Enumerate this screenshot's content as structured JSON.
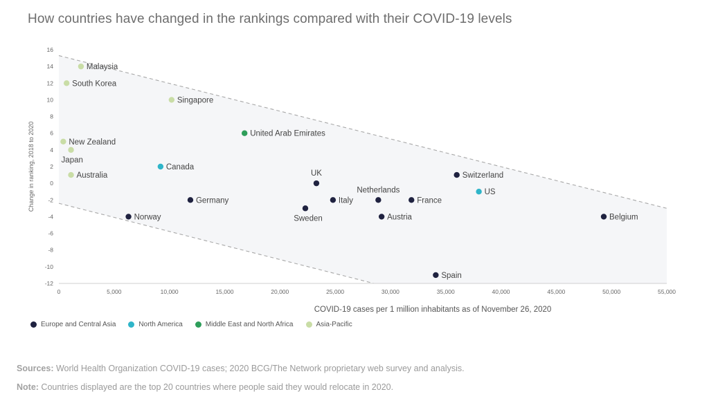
{
  "chart_data": {
    "type": "scatter",
    "title": "How countries have changed in the rankings compared with their COVID-19 levels",
    "xlabel": "COVID-19 cases per 1 million inhabitants as of November 26, 2020",
    "ylabel": "Change in ranking, 2018 to 2020",
    "xlim": [
      0,
      55000
    ],
    "ylim": [
      -12,
      16
    ],
    "x_ticks": [
      0,
      5000,
      10000,
      15000,
      20000,
      25000,
      30000,
      35000,
      40000,
      45000,
      50000,
      55000
    ],
    "x_tick_labels": [
      "0",
      "5,000",
      "10,000",
      "15,000",
      "20,000",
      "25,000",
      "30,000",
      "35,000",
      "40,000",
      "45,000",
      "50,000",
      "55,000"
    ],
    "y_ticks": [
      -12,
      -10,
      -8,
      -6,
      -4,
      -2,
      0,
      2,
      4,
      6,
      8,
      10,
      12,
      14,
      16
    ],
    "legend_position": "bottom-left",
    "grid": false,
    "band": {
      "upper": {
        "x0": 0,
        "y0": 15.3,
        "x1": 55000,
        "y1": -3
      },
      "lower": {
        "x0": 0,
        "y0": -2.4,
        "x1": 28500,
        "y1": -12
      }
    },
    "series": [
      {
        "name": "Europe and Central Asia",
        "color": "#1f2240"
      },
      {
        "name": "North America",
        "color": "#2fb5c9"
      },
      {
        "name": "Middle East and North Africa",
        "color": "#2e9e5a"
      },
      {
        "name": "Asia-Pacific",
        "color": "#c9dda6"
      }
    ],
    "points": [
      {
        "label": "Malaysia",
        "x": 2000,
        "y": 14,
        "series": 3,
        "pos": "right"
      },
      {
        "label": "South Korea",
        "x": 700,
        "y": 12,
        "series": 3,
        "pos": "right"
      },
      {
        "label": "Singapore",
        "x": 10200,
        "y": 10,
        "series": 3,
        "pos": "right"
      },
      {
        "label": "New Zealand",
        "x": 400,
        "y": 5,
        "series": 3,
        "pos": "right"
      },
      {
        "label": "Japan",
        "x": 1100,
        "y": 4,
        "series": 3,
        "pos": "below-left"
      },
      {
        "label": "Australia",
        "x": 1100,
        "y": 1,
        "series": 3,
        "pos": "right"
      },
      {
        "label": "United Arab Emirates",
        "x": 16800,
        "y": 6,
        "series": 2,
        "pos": "right"
      },
      {
        "label": "Canada",
        "x": 9200,
        "y": 2,
        "series": 1,
        "pos": "right"
      },
      {
        "label": "US",
        "x": 38000,
        "y": -1,
        "series": 1,
        "pos": "right"
      },
      {
        "label": "Germany",
        "x": 11900,
        "y": -2,
        "series": 0,
        "pos": "right"
      },
      {
        "label": "Norway",
        "x": 6300,
        "y": -4,
        "series": 0,
        "pos": "right"
      },
      {
        "label": "UK",
        "x": 23300,
        "y": 0,
        "series": 0,
        "pos": "above"
      },
      {
        "label": "Sweden",
        "x": 22300,
        "y": -3,
        "series": 0,
        "pos": "below"
      },
      {
        "label": "Italy",
        "x": 24800,
        "y": -2,
        "series": 0,
        "pos": "right"
      },
      {
        "label": "Netherlands",
        "x": 28900,
        "y": -2,
        "series": 0,
        "pos": "above"
      },
      {
        "label": "France",
        "x": 31900,
        "y": -2,
        "series": 0,
        "pos": "right"
      },
      {
        "label": "Austria",
        "x": 29200,
        "y": -4,
        "series": 0,
        "pos": "right"
      },
      {
        "label": "Switzerland",
        "x": 36000,
        "y": 1,
        "series": 0,
        "pos": "right"
      },
      {
        "label": "Belgium",
        "x": 49300,
        "y": -4,
        "series": 0,
        "pos": "right"
      },
      {
        "label": "Spain",
        "x": 34100,
        "y": -11,
        "series": 0,
        "pos": "right"
      }
    ]
  },
  "footer": {
    "sources_label": "Sources:",
    "sources_text": " World Health Organization COVID-19 cases; 2020 BCG/The Network proprietary web survey and analysis.",
    "note_label": "Note:",
    "note_text": " Countries displayed are the top 20 countries where people said they would relocate in 2020."
  }
}
